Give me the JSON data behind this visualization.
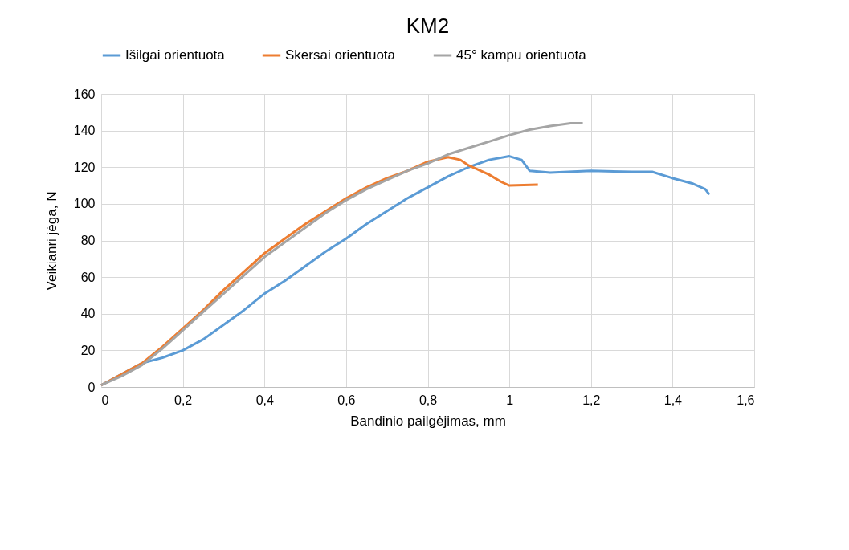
{
  "chart_data": {
    "type": "line",
    "title": "KM2",
    "xlabel": "Bandinio pailgėjimas, mm",
    "ylabel": "Veikianri jėga, N",
    "legend": "top",
    "grid": true,
    "marker": "none",
    "line_style": "solid",
    "xlim": [
      0,
      1.6
    ],
    "ylim": [
      0,
      160
    ],
    "xticks": [
      0,
      {
        "value": 0.2,
        "label": "0,2"
      },
      {
        "value": 0.4,
        "label": "0,4"
      },
      {
        "value": 0.6,
        "label": "0,6"
      },
      {
        "value": 0.8,
        "label": "0,8"
      },
      1,
      {
        "value": 1.2,
        "label": "1,2"
      },
      {
        "value": 1.4,
        "label": "1,4"
      },
      {
        "value": 1.6,
        "label": "1,6"
      }
    ],
    "yticks": [
      0,
      20,
      40,
      60,
      80,
      100,
      120,
      140,
      160
    ],
    "series": [
      {
        "name": "Išilgai orientuota",
        "color": "#5b9bd5",
        "x": [
          0,
          0.05,
          0.1,
          0.15,
          0.2,
          0.25,
          0.3,
          0.35,
          0.4,
          0.45,
          0.5,
          0.55,
          0.6,
          0.65,
          0.7,
          0.75,
          0.8,
          0.85,
          0.9,
          0.95,
          1.0,
          1.03,
          1.05,
          1.1,
          1.2,
          1.3,
          1.35,
          1.4,
          1.45,
          1.48,
          1.49
        ],
        "values": [
          1,
          7,
          13,
          16,
          20,
          26,
          34,
          42,
          51,
          58,
          66,
          74,
          81,
          89,
          96,
          103,
          109,
          115,
          120,
          124,
          126,
          124,
          118,
          117,
          118,
          117.5,
          117.5,
          114,
          111,
          108,
          105
        ]
      },
      {
        "name": "Skersai orientuota",
        "color": "#ed7d31",
        "x": [
          0,
          0.05,
          0.1,
          0.15,
          0.2,
          0.25,
          0.3,
          0.35,
          0.4,
          0.45,
          0.5,
          0.55,
          0.6,
          0.65,
          0.7,
          0.75,
          0.8,
          0.85,
          0.88,
          0.9,
          0.95,
          0.98,
          1.0,
          1.07
        ],
        "values": [
          1,
          7,
          13,
          22,
          32,
          42,
          53,
          63,
          73,
          81,
          89,
          96,
          103,
          109,
          114,
          118,
          123,
          125.5,
          124,
          121,
          116,
          112,
          110,
          110.5
        ]
      },
      {
        "name": "45° kampu orientuota",
        "color": "#a5a5a5",
        "x": [
          0,
          0.05,
          0.1,
          0.15,
          0.2,
          0.25,
          0.3,
          0.35,
          0.4,
          0.45,
          0.5,
          0.55,
          0.6,
          0.65,
          0.7,
          0.75,
          0.8,
          0.85,
          0.9,
          0.95,
          1.0,
          1.05,
          1.1,
          1.15,
          1.18
        ],
        "values": [
          1,
          6,
          12,
          21,
          31,
          41,
          51,
          61,
          71,
          79,
          87,
          95,
          102,
          108,
          113,
          118,
          122,
          127,
          130.5,
          134,
          137.5,
          140.5,
          142.5,
          144,
          144
        ]
      }
    ]
  }
}
